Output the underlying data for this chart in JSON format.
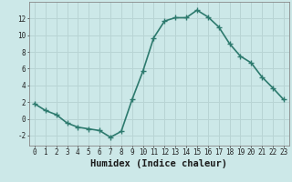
{
  "x": [
    0,
    1,
    2,
    3,
    4,
    5,
    6,
    7,
    8,
    9,
    10,
    11,
    12,
    13,
    14,
    15,
    16,
    17,
    18,
    19,
    20,
    21,
    22,
    23
  ],
  "y": [
    1.8,
    1.0,
    0.5,
    -0.5,
    -1.0,
    -1.2,
    -1.4,
    -2.2,
    -1.5,
    2.3,
    5.7,
    9.7,
    11.7,
    12.1,
    12.1,
    13.0,
    12.2,
    11.0,
    9.0,
    7.5,
    6.7,
    5.0,
    3.7,
    2.3
  ],
  "line_color": "#2d7a6e",
  "marker": "+",
  "marker_size": 4,
  "line_width": 1.2,
  "xlabel": "Humidex (Indice chaleur)",
  "xlim": [
    -0.5,
    23.5
  ],
  "ylim": [
    -3.2,
    14.0
  ],
  "yticks": [
    -2,
    0,
    2,
    4,
    6,
    8,
    10,
    12
  ],
  "xticks": [
    0,
    1,
    2,
    3,
    4,
    5,
    6,
    7,
    8,
    9,
    10,
    11,
    12,
    13,
    14,
    15,
    16,
    17,
    18,
    19,
    20,
    21,
    22,
    23
  ],
  "xtick_labels": [
    "0",
    "1",
    "2",
    "3",
    "4",
    "5",
    "6",
    "7",
    "8",
    "9",
    "10",
    "11",
    "12",
    "13",
    "14",
    "15",
    "16",
    "17",
    "18",
    "19",
    "20",
    "21",
    "22",
    "23"
  ],
  "grid_color": "#b8d4d4",
  "bg_color": "#cce8e8",
  "tick_fontsize": 5.5,
  "xlabel_fontsize": 7.5
}
